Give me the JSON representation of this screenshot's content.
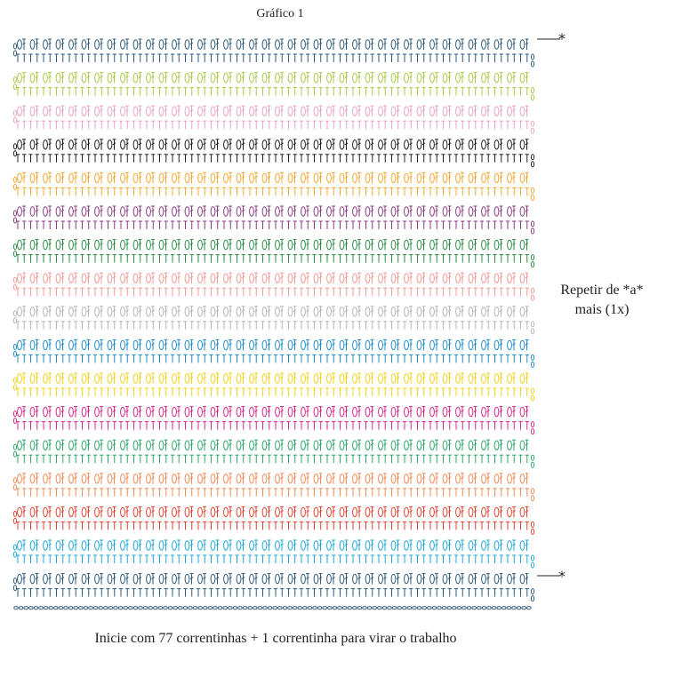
{
  "title": "Gráfico 1",
  "repeat_note": {
    "line1": "Repetir de *a*",
    "line2": "mais (1x)"
  },
  "markers": {
    "top": "*",
    "bottom": "*"
  },
  "footer": "Inicie com 77 correntinhas + 1 correntinha para virar o trabalho",
  "row_colors": [
    "#2e5a7a",
    "#a9c94a",
    "#e9a3c3",
    "#231f20",
    "#f6a832",
    "#8a3b82",
    "#2a8b45",
    "#f39b96",
    "#b5b5b5",
    "#1f8cc8",
    "#f3d11a",
    "#d6278a",
    "#2fa66b",
    "#f08b55",
    "#e3412f",
    "#1fa7d8",
    "#2e5a7a"
  ],
  "foundation_color": "#2e5a7a"
}
